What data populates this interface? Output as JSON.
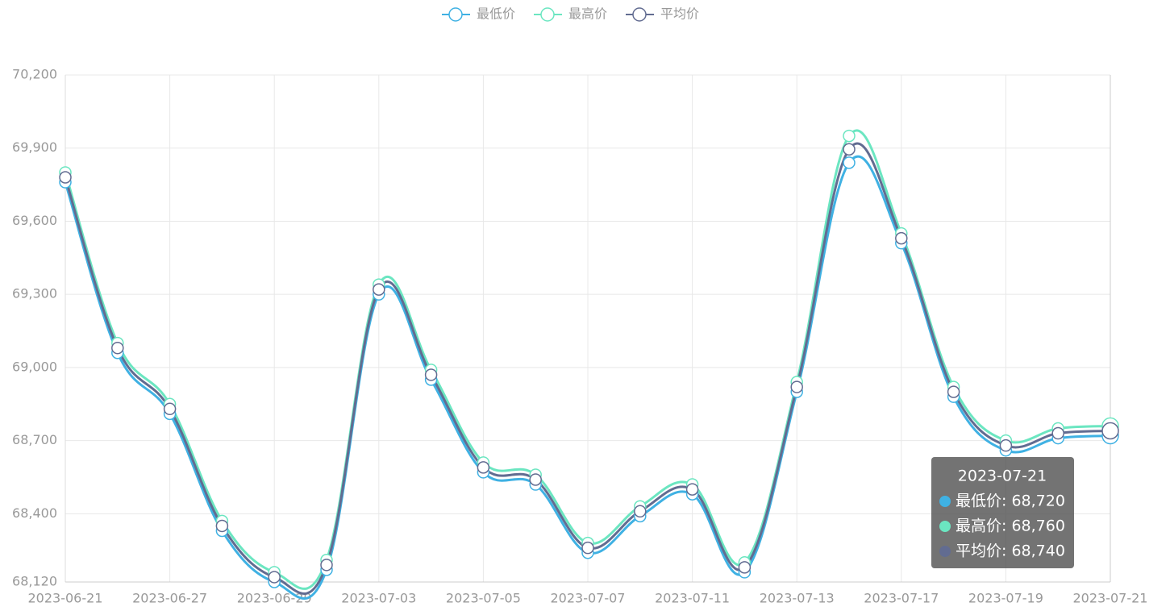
{
  "chart_data": {
    "type": "line",
    "categories": [
      "2023-06-21",
      null,
      "2023-06-27",
      null,
      "2023-06-29",
      null,
      "2023-07-03",
      null,
      "2023-07-05",
      null,
      "2023-07-07",
      null,
      "2023-07-11",
      null,
      "2023-07-13",
      null,
      "2023-07-17",
      null,
      "2023-07-19",
      null,
      "2023-07-21"
    ],
    "series": [
      {
        "name": "最低价",
        "color": "#3fb1e3",
        "values": [
          69760,
          69060,
          68810,
          68330,
          68120,
          68170,
          69300,
          68950,
          68570,
          68520,
          68240,
          68390,
          68480,
          68160,
          68900,
          69840,
          69510,
          68880,
          68660,
          68710,
          68720
        ]
      },
      {
        "name": "最高价",
        "color": "#6be6c1",
        "values": [
          69800,
          69100,
          68850,
          68370,
          68160,
          68210,
          69340,
          68990,
          68610,
          68560,
          68280,
          68430,
          68520,
          68200,
          68940,
          69950,
          69550,
          68920,
          68700,
          68750,
          68760
        ]
      },
      {
        "name": "平均价",
        "color": "#626c91",
        "values": [
          69780,
          69080,
          68830,
          68350,
          68140,
          68190,
          69320,
          68970,
          68590,
          68540,
          68260,
          68410,
          68500,
          68180,
          68920,
          69895,
          69530,
          68900,
          68680,
          68730,
          68740
        ]
      }
    ],
    "ylim": [
      68120,
      70200
    ],
    "yticks": [
      {
        "value": 68120,
        "label": "68,120"
      },
      {
        "value": 68400,
        "label": "68,400"
      },
      {
        "value": 68700,
        "label": "68,700"
      },
      {
        "value": 69000,
        "label": "69,000"
      },
      {
        "value": 69300,
        "label": "69,300"
      },
      {
        "value": 69600,
        "label": "69,600"
      },
      {
        "value": 69900,
        "label": "69,900"
      },
      {
        "value": 70200,
        "label": "70,200"
      }
    ],
    "grid": true,
    "smooth": true,
    "legend": "top",
    "tooltip": {
      "index": 20,
      "rows": [
        "最低价: 68,720",
        "最高价: 68,760",
        "平均价: 68,740"
      ]
    }
  }
}
